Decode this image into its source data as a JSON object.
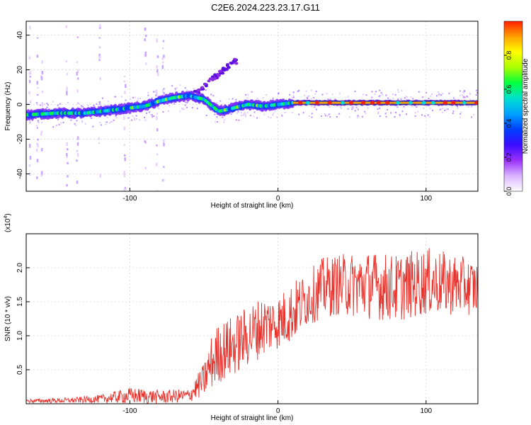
{
  "title": "C2E6.2024.223.23.17.G11",
  "colors": {
    "snr_line": "#e8322c",
    "grid": "#cccccc",
    "colormap": [
      "#ffffff",
      "#d9b3ff",
      "#9b30ff",
      "#3a0dff",
      "#0040ff",
      "#00a0ff",
      "#00e0d0",
      "#00ff40",
      "#a8ff00",
      "#ffff00",
      "#ffa000",
      "#ff2000"
    ]
  },
  "chart_data": [
    {
      "type": "heatmap",
      "xlabel": "Height of straight line (km)",
      "ylabel": "Frequency (Hz)",
      "xlim": [
        -170,
        135
      ],
      "ylim": [
        -50,
        48
      ],
      "xticks": [
        -100,
        0,
        100
      ],
      "yticks": [
        -40,
        -20,
        0,
        20,
        40
      ],
      "grid": true,
      "ridge": {
        "x": [
          -170,
          -150,
          -130,
          -110,
          -90,
          -80,
          -70,
          -60,
          -50,
          -40,
          -30,
          -20,
          -10,
          0,
          10,
          50,
          100,
          135
        ],
        "y": [
          -6,
          -5,
          -5,
          -3,
          -1,
          2,
          4,
          5,
          3,
          -4,
          -2,
          0,
          -1,
          0,
          1,
          1,
          1,
          1
        ]
      },
      "branch": {
        "x": [
          -55,
          -45,
          -35,
          -30
        ],
        "y": [
          7,
          14,
          21,
          25
        ]
      },
      "colorbar": {
        "label": "Normalized spectral amplitude",
        "range": [
          0,
          1
        ],
        "ticks": [
          0.0,
          0.2,
          0.4,
          0.6,
          0.8
        ]
      }
    },
    {
      "type": "line",
      "xlabel": "Height of straight line (km)",
      "ylabel": "SNR (10 * v/v)",
      "scale_label": "(x10",
      "scale_exp": "4",
      "xlim": [
        -170,
        135
      ],
      "ylim": [
        0,
        2.5
      ],
      "xticks": [
        -100,
        0,
        100
      ],
      "yticks": [
        0.5,
        1.0,
        1.5,
        2.0
      ],
      "ytick_labels": [
        "0.5",
        "1.0",
        "1.5",
        "2.0"
      ],
      "grid": true,
      "series": [
        {
          "envelope_x": [
            -170,
            -140,
            -120,
            -100,
            -80,
            -60,
            -50,
            -45,
            -40,
            -30,
            -20,
            -10,
            0,
            10,
            20,
            30,
            40,
            60,
            80,
            100,
            120,
            135
          ],
          "envelope_mean": [
            0.04,
            0.05,
            0.07,
            0.12,
            0.1,
            0.12,
            0.35,
            0.6,
            0.75,
            0.85,
            1.0,
            1.15,
            1.2,
            1.35,
            1.55,
            1.7,
            1.75,
            1.75,
            1.7,
            1.8,
            1.75,
            1.7
          ],
          "envelope_amp": [
            0.03,
            0.04,
            0.06,
            0.12,
            0.1,
            0.1,
            0.25,
            0.4,
            0.45,
            0.45,
            0.45,
            0.45,
            0.4,
            0.45,
            0.4,
            0.45,
            0.45,
            0.5,
            0.5,
            0.5,
            0.45,
            0.4
          ]
        }
      ]
    }
  ]
}
